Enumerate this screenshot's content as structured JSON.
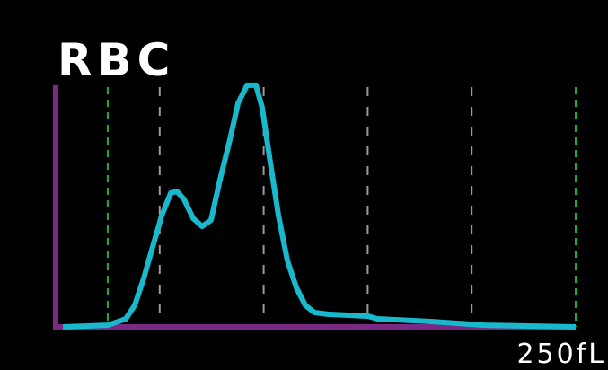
{
  "chart_data": {
    "type": "line",
    "title": "RBC",
    "x": [
      3.5,
      25.0,
      33.7,
      38.0,
      42.3,
      46.6,
      51.0,
      55.3,
      58.3,
      61.7,
      66.1,
      70.4,
      74.7,
      79.0,
      83.3,
      87.7,
      92.0,
      96.3,
      99.3,
      102.8,
      107.1,
      111.4,
      115.7,
      120.0,
      124.4,
      130.8,
      150.3,
      154.6,
      180.5,
      206.4,
      250
    ],
    "series": [
      {
        "color": "#1ab8cc",
        "values": [
          0,
          0.7,
          3.3,
          8.9,
          19.9,
          32.8,
          45.8,
          55.0,
          55.7,
          52.4,
          44.6,
          41.3,
          43.9,
          60.5,
          75.3,
          91.9,
          99.3,
          99.3,
          90.0,
          69.7,
          45.8,
          27.3,
          16.2,
          8.9,
          5.9,
          5.2,
          4.4,
          3.3,
          2.2,
          0.7,
          0
        ]
      }
    ],
    "xlim": [
      0,
      250
    ],
    "ylim": [
      0,
      100
    ],
    "xticks": [
      {
        "value": 250,
        "label": "250fL"
      }
    ],
    "grid_x": [
      50,
      100,
      150,
      200
    ],
    "grid_color": "#9a9a9a",
    "discriminators": [
      25,
      250
    ],
    "discriminator_color": "#1fae3e",
    "axis_color": "#7a2a84"
  }
}
